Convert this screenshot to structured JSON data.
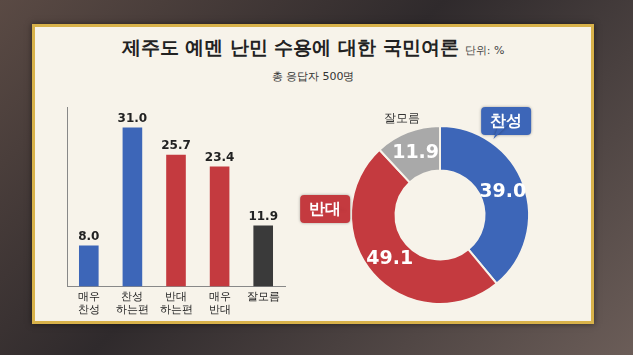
{
  "title": "제주도 예멘 난민 수용에 대한 국민여론",
  "unit_note": "단위: %",
  "subtitle": "총 응답자 500명",
  "chart_data": [
    {
      "type": "bar",
      "categories": [
        "매우 찬성",
        "찬성 하는편",
        "반대 하는편",
        "매우 반대",
        "잘모름"
      ],
      "values": [
        8.0,
        31.0,
        25.7,
        23.4,
        11.9
      ],
      "value_labels": [
        "8.0",
        "31.0",
        "25.7",
        "23.4",
        "11.9"
      ],
      "colors": [
        "#3d66b8",
        "#3d66b8",
        "#c43a3f",
        "#c43a3f",
        "#3a3a3a"
      ],
      "ylim": [
        0,
        35
      ],
      "yticks": [
        0,
        35
      ],
      "grid": false,
      "data_labels": true,
      "tick_labels": "x"
    },
    {
      "type": "doughnut",
      "categories": [
        "찬성",
        "반대",
        "잘모름"
      ],
      "values": [
        39.0,
        49.1,
        11.9
      ],
      "value_labels": [
        "39.0",
        "49.1",
        "11.9"
      ],
      "colors": [
        "#3d66b8",
        "#c43a3f",
        "#a9a9a9"
      ],
      "data_labels": true
    }
  ]
}
